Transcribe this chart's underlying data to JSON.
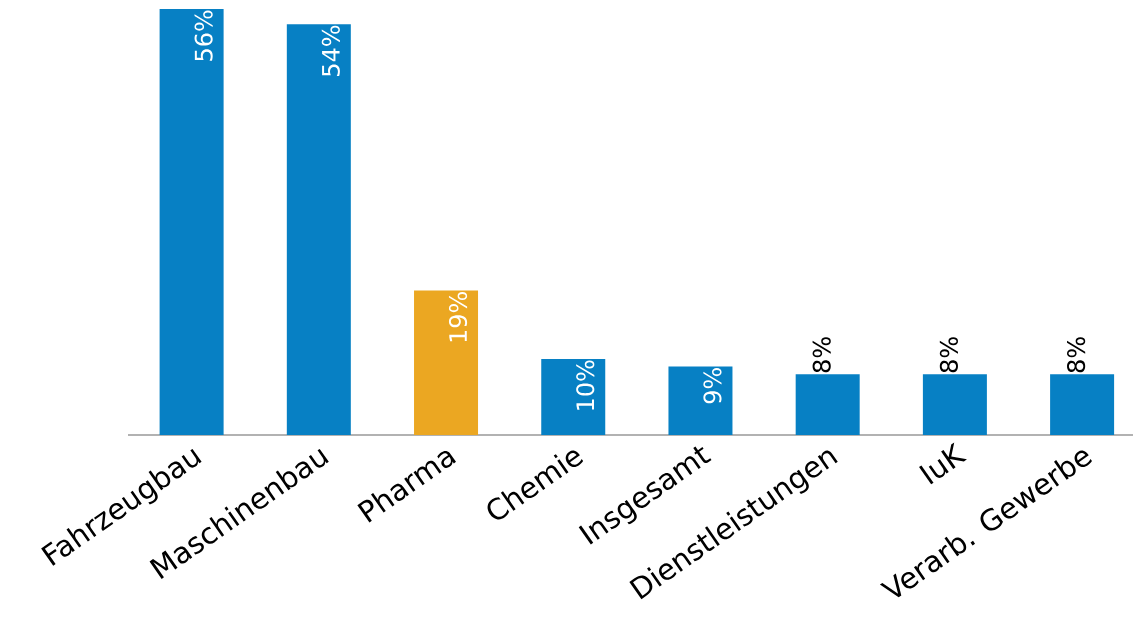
{
  "chart_data": {
    "type": "bar",
    "categories": [
      "Fahrzeugbau",
      "Maschinenbau",
      "Pharma",
      "Chemie",
      "Insgesamt",
      "Dienstleistungen",
      "IuK",
      "Verarb. Gewerbe"
    ],
    "values": [
      56,
      54,
      19,
      10,
      9,
      8,
      8,
      8
    ],
    "value_labels": [
      "56%",
      "54%",
      "19%",
      "10%",
      "9%",
      "8%",
      "8%",
      "8%"
    ],
    "colors": [
      "#0780c4",
      "#0780c4",
      "#eba722",
      "#0780c4",
      "#0780c4",
      "#0780c4",
      "#0780c4",
      "#0780c4"
    ]
  }
}
